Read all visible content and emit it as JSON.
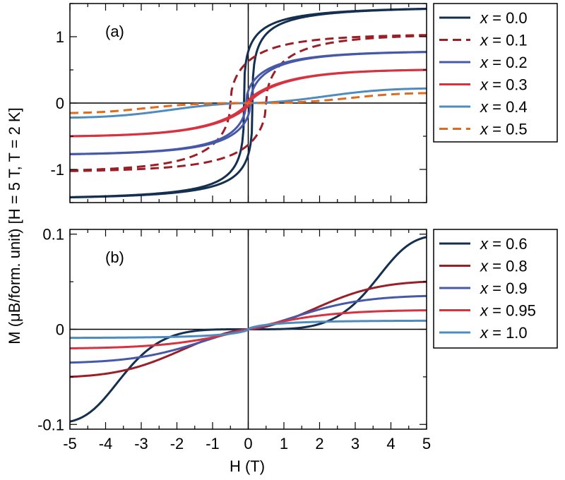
{
  "chart_data": [
    {
      "panel": "(a)",
      "type": "line",
      "xlabel": "H (T)",
      "ylabel": "M (μB/form. unit) [H = 5 T, T = 2 K]",
      "xlim": [
        -5,
        5
      ],
      "ylim": [
        -1.5,
        1.5
      ],
      "x_ticks": [
        "-5",
        "-4",
        "-3",
        "-2",
        "-1",
        "0",
        "1",
        "2",
        "3",
        "4",
        "5"
      ],
      "y_ticks": [
        {
          "value": 1,
          "label": "1"
        },
        {
          "value": 0,
          "label": "0"
        },
        {
          "value": -1,
          "label": "-1"
        }
      ],
      "series": [
        {
          "name": "x = 0.0",
          "label_var": "x",
          "label_val": "= 0.0",
          "color": "#142f4f",
          "dashed": false,
          "ms": 1.42,
          "coercive": 0.12,
          "shape": 0.35
        },
        {
          "name": "x = 0.1",
          "label_var": "x",
          "label_val": "= 0.1",
          "color": "#9b1f27",
          "dashed": true,
          "ms": 1.02,
          "coercive": 0.5,
          "shape": 0.5
        },
        {
          "name": "x = 0.2",
          "label_var": "x",
          "label_val": "= 0.2",
          "color": "#4658a8",
          "dashed": false,
          "ms": 0.77,
          "coercive": 0.06,
          "shape": 0.5
        },
        {
          "name": "x = 0.3",
          "label_var": "x",
          "label_val": "= 0.3",
          "color": "#d7323f",
          "dashed": false,
          "ms": 0.5,
          "coercive": 0.04,
          "shape": 0.7
        },
        {
          "name": "x = 0.4",
          "label_var": "x",
          "label_val": "= 0.4",
          "color": "#4e8bbf",
          "dashed": false,
          "ms": 0.22,
          "coercive": 0.0,
          "shape": 1.8
        },
        {
          "name": "x = 0.5",
          "label_var": "x",
          "label_val": "= 0.5",
          "color": "#e06a1e",
          "dashed": true,
          "ms": 0.15,
          "coercive": 0.0,
          "shape": 2.5
        }
      ]
    },
    {
      "panel": "(b)",
      "type": "line",
      "xlabel": "H (T)",
      "ylabel": "M (μB/form. unit) [H = 5 T, T = 2 K]",
      "xlim": [
        -5,
        5
      ],
      "ylim": [
        -0.105,
        0.105
      ],
      "x_ticks": [
        "-5",
        "-4",
        "-3",
        "-2",
        "-1",
        "0",
        "1",
        "2",
        "3",
        "4",
        "5"
      ],
      "y_ticks": [
        {
          "value": 0.1,
          "label": "0.1"
        },
        {
          "value": 0,
          "label": "0"
        },
        {
          "value": -0.1,
          "label": "-0.1"
        }
      ],
      "series": [
        {
          "name": "x = 0.6",
          "label_var": "x",
          "label_val": "= 0.6",
          "color": "#142f4f",
          "dashed": false,
          "ms": 0.097,
          "coercive": 0,
          "shape": 4.0
        },
        {
          "name": "x = 0.8",
          "label_var": "x",
          "label_val": "= 0.8",
          "color": "#9b1f27",
          "dashed": false,
          "ms": 0.05,
          "coercive": 0,
          "shape": 1.6
        },
        {
          "name": "x = 0.9",
          "label_var": "x",
          "label_val": "= 0.9",
          "color": "#4658a8",
          "dashed": false,
          "ms": 0.035,
          "coercive": 0,
          "shape": 1.3
        },
        {
          "name": "x = 0.95",
          "label_var": "x",
          "label_val": "= 0.95",
          "color": "#d7323f",
          "dashed": false,
          "ms": 0.02,
          "coercive": 0,
          "shape": 1.0
        },
        {
          "name": "x = 1.0",
          "label_var": "x",
          "label_val": "= 1.0",
          "color": "#4e8bbf",
          "dashed": false,
          "ms": 0.009,
          "coercive": 0,
          "shape": 0.6
        }
      ]
    }
  ]
}
